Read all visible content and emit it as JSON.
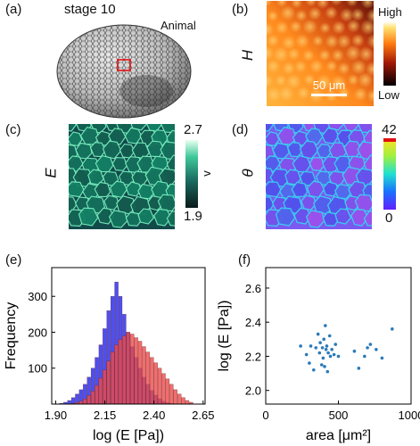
{
  "panels": {
    "a": {
      "label": "(a)",
      "stage": "stage 10",
      "region": "Animal"
    },
    "b": {
      "label": "(b)",
      "y_label": "H",
      "scalebar": "50 μm",
      "colorbar_high": "High",
      "colorbar_low": "Low"
    },
    "c": {
      "label": "(c)",
      "y_label": "E",
      "colorbar_max": "2.7",
      "colorbar_min": "1.9",
      "colorbar_arrow": "v"
    },
    "d": {
      "label": "(d)",
      "y_label": "θ",
      "colorbar_max": "42",
      "colorbar_min": "0"
    }
  },
  "chart_data": [
    {
      "id": "e",
      "label": "(e)",
      "type": "bar",
      "xlabel": "log (E [Pa])",
      "ylabel": "Frequency",
      "xlim": [
        1.88,
        2.66
      ],
      "ylim": [
        0,
        380
      ],
      "xticks": [
        "1.90",
        "2.15",
        "2.40",
        "2.65"
      ],
      "yticks": [
        "100",
        "200",
        "300"
      ],
      "bin_width": 0.02,
      "bin_start": 1.92,
      "series": [
        {
          "color": "#3b3bf0",
          "values": [
            2,
            5,
            10,
            18,
            28,
            40,
            55,
            75,
            100,
            130,
            165,
            210,
            260,
            300,
            340,
            300,
            250,
            200,
            160,
            130,
            100,
            75,
            55,
            38,
            25,
            15,
            8,
            4,
            2,
            1,
            0,
            0,
            0,
            0
          ]
        },
        {
          "color": "#f04848",
          "values": [
            0,
            0,
            1,
            2,
            4,
            8,
            14,
            24,
            36,
            52,
            72,
            95,
            120,
            145,
            165,
            180,
            190,
            200,
            195,
            185,
            175,
            160,
            145,
            130,
            115,
            100,
            85,
            70,
            55,
            40,
            28,
            18,
            10,
            5
          ]
        }
      ]
    },
    {
      "id": "f",
      "label": "(f)",
      "type": "scatter",
      "xlabel": "area [μm²]",
      "ylabel": "log (E [Pa])",
      "xlim": [
        0,
        1000
      ],
      "ylim": [
        1.92,
        2.72
      ],
      "xticks": [
        "0",
        "500",
        "1000"
      ],
      "yticks": [
        "2.0",
        "2.2",
        "2.4",
        "2.6"
      ],
      "point_color": "#2a7ab8",
      "x": [
        240,
        280,
        300,
        310,
        330,
        345,
        360,
        370,
        375,
        385,
        390,
        395,
        400,
        405,
        410,
        415,
        420,
        425,
        430,
        440,
        445,
        455,
        470,
        480,
        500,
        610,
        640,
        680,
        700,
        720,
        760,
        800,
        870
      ],
      "y": [
        2.26,
        2.21,
        2.16,
        2.26,
        2.12,
        2.25,
        2.33,
        2.22,
        2.28,
        2.15,
        2.25,
        2.19,
        2.3,
        2.14,
        2.38,
        2.24,
        2.26,
        2.11,
        2.22,
        2.32,
        2.2,
        2.24,
        2.21,
        2.27,
        2.2,
        2.23,
        2.13,
        2.2,
        2.25,
        2.27,
        2.24,
        2.19,
        2.36
      ]
    }
  ]
}
